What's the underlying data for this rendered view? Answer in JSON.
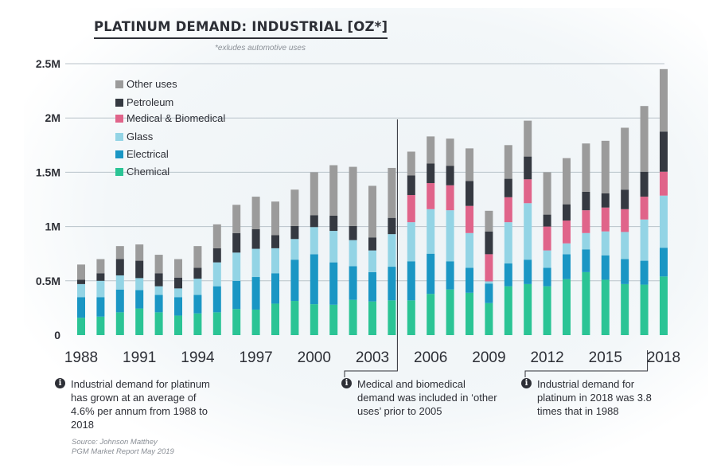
{
  "chart_data": {
    "type": "bar",
    "stacked": true,
    "title": "PLATINUM DEMAND: INDUSTRIAL [OZ*]",
    "subtitle": "*exludes automotive uses",
    "ylim": [
      0,
      2500000
    ],
    "yticks": [
      0,
      500000,
      1000000,
      1500000,
      2000000,
      2500000
    ],
    "ytick_labels": [
      "0",
      "0.5M",
      "1M",
      "1.5M",
      "2M",
      "2.5M"
    ],
    "categories": [
      1988,
      1989,
      1990,
      1991,
      1992,
      1993,
      1994,
      1995,
      1996,
      1997,
      1998,
      1999,
      2000,
      2001,
      2002,
      2003,
      2004,
      2005,
      2006,
      2007,
      2008,
      2009,
      2010,
      2011,
      2012,
      2013,
      2014,
      2015,
      2016,
      2017,
      2018
    ],
    "xtick_labels": [
      "1988",
      "1991",
      "1994",
      "1997",
      "2000",
      "2003",
      "2006",
      "2009",
      "2012",
      "2015",
      "2018"
    ],
    "grid": true,
    "legend_position": "top-left",
    "series": [
      {
        "name": "Chemical",
        "color": "#2bc495",
        "values": [
          160,
          170,
          210,
          245,
          210,
          180,
          200,
          210,
          240,
          235,
          290,
          315,
          285,
          280,
          325,
          310,
          320,
          320,
          380,
          420,
          390,
          295,
          450,
          470,
          450,
          515,
          580,
          510,
          470,
          465,
          540
        ]
      },
      {
        "name": "Electrical",
        "color": "#1a96c4",
        "values": [
          190,
          180,
          210,
          170,
          160,
          170,
          170,
          240,
          260,
          300,
          280,
          380,
          460,
          390,
          310,
          270,
          310,
          360,
          370,
          260,
          230,
          180,
          210,
          225,
          170,
          230,
          210,
          225,
          230,
          220,
          265
        ]
      },
      {
        "name": "Glass",
        "color": "#93d4e5",
        "values": [
          120,
          150,
          130,
          110,
          80,
          80,
          150,
          220,
          260,
          260,
          230,
          190,
          250,
          290,
          240,
          200,
          300,
          360,
          410,
          470,
          320,
          20,
          380,
          520,
          160,
          100,
          150,
          220,
          250,
          380,
          480
        ]
      },
      {
        "name": "Medical & Biomedical",
        "color": "#e0648a",
        "values": [
          0,
          0,
          0,
          0,
          0,
          0,
          0,
          0,
          0,
          0,
          0,
          0,
          0,
          0,
          0,
          0,
          0,
          250,
          240,
          230,
          250,
          250,
          230,
          220,
          220,
          210,
          210,
          220,
          210,
          210,
          220
        ]
      },
      {
        "name": "Petroleum",
        "color": "#353941",
        "values": [
          40,
          70,
          150,
          160,
          120,
          100,
          100,
          130,
          180,
          180,
          120,
          120,
          110,
          140,
          130,
          120,
          150,
          180,
          180,
          180,
          230,
          210,
          170,
          210,
          110,
          150,
          170,
          130,
          180,
          230,
          370
        ]
      },
      {
        "name": "Other uses",
        "color": "#9b9b9b",
        "values": [
          140,
          130,
          120,
          150,
          170,
          170,
          200,
          220,
          260,
          300,
          310,
          335,
          395,
          465,
          545,
          475,
          460,
          220,
          250,
          250,
          300,
          190,
          310,
          330,
          390,
          425,
          445,
          485,
          570,
          605,
          575
        ]
      }
    ],
    "value_units": "thousand oz"
  },
  "notes": {
    "left": "Industrial demand for platinum has grown at an average of 4.6% per annum from 1988 to 2018",
    "middle": "Medical and biomedical demand was included in ‘other uses’ prior to 2005",
    "right": "Industrial demand for platinum in 2018 was 3.8 times that in 1988",
    "icon": "info-icon"
  },
  "source": {
    "line1": "Source: Johnson Matthey",
    "line2": "PGM Market Report May 2019"
  }
}
